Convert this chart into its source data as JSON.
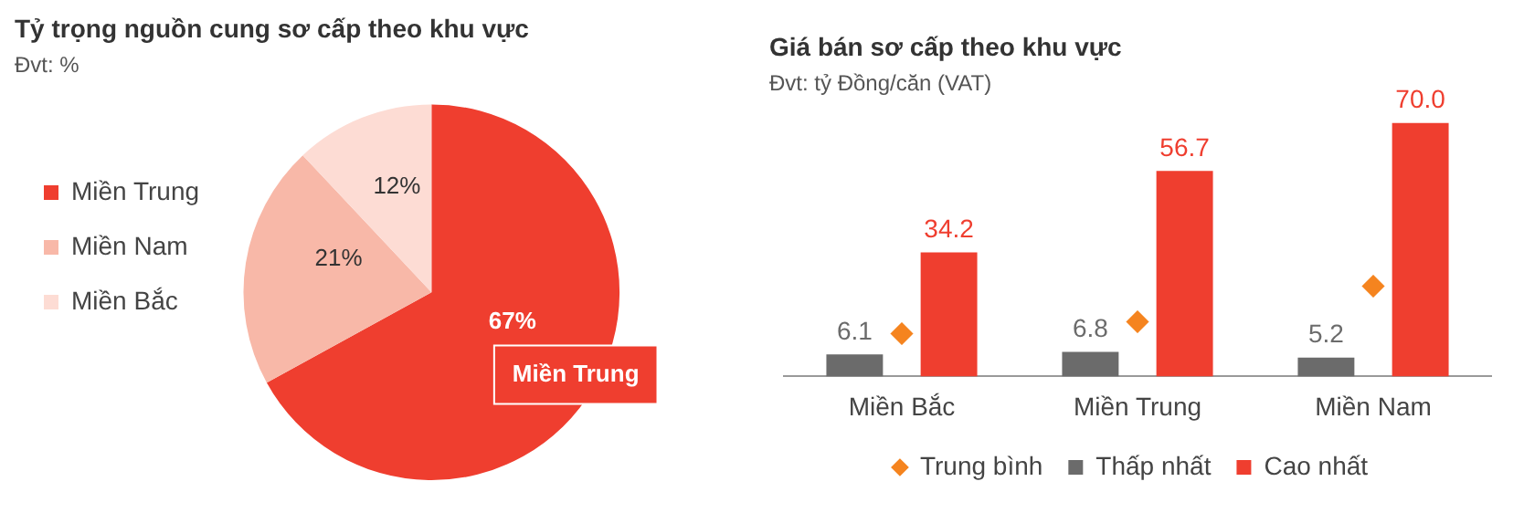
{
  "chart_data": [
    {
      "type": "pie",
      "title": "Tỷ trọng nguồn cung sơ cấp theo khu vực",
      "subtitle": "Đvt: %",
      "categories": [
        "Miền Trung",
        "Miền Nam",
        "Miền Bắc"
      ],
      "values": [
        67,
        21,
        12
      ],
      "colors": [
        "#ef3e2f",
        "#f8b8a8",
        "#fddcd4"
      ],
      "value_labels": [
        "67%",
        "21%",
        "12%"
      ],
      "legend": "left",
      "annotations": [
        "Miền Trung"
      ]
    },
    {
      "type": "bar",
      "title": "Giá bán sơ cấp theo khu vực",
      "subtitle": "Đvt: tỷ Đồng/căn (VAT)",
      "categories": [
        "Miền Bắc",
        "Miền Trung",
        "Miền Nam"
      ],
      "series": [
        {
          "name": "Thấp nhất",
          "color": "#6b6b6b",
          "values": [
            6.1,
            6.8,
            5.2
          ],
          "value_labels": [
            "6.1",
            "6.8",
            "5.2"
          ]
        },
        {
          "name": "Cao nhất",
          "color": "#ef3e2f",
          "values": [
            34.2,
            56.7,
            70.0
          ],
          "value_labels": [
            "34.2",
            "56.7",
            "70.0"
          ]
        },
        {
          "name": "Trung bình",
          "type": "scatter",
          "marker": "diamond",
          "color": "#f5841f",
          "x": [
            "Miền Bắc",
            "Miền Trung",
            "Miền Nam"
          ],
          "values": [
            11.8,
            15.1,
            24.9
          ]
        }
      ],
      "legend": "bottom",
      "grid": false
    }
  ]
}
